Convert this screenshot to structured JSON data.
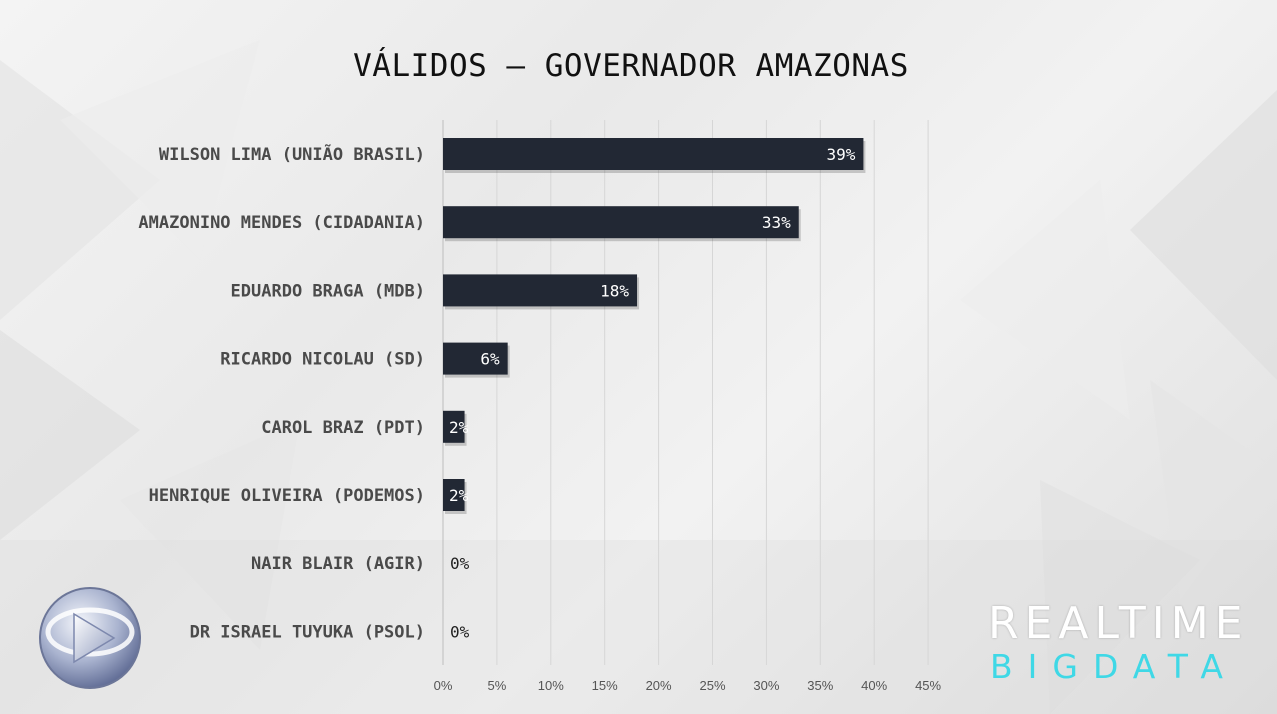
{
  "chart_data": {
    "type": "bar",
    "orientation": "horizontal",
    "title": "VÁLIDOS – GOVERNADOR AMAZONAS",
    "categories": [
      "WILSON LIMA (UNIÃO BRASIL)",
      "AMAZONINO MENDES (CIDADANIA)",
      "EDUARDO BRAGA (MDB)",
      "RICARDO NICOLAU (SD)",
      "CAROL BRAZ (PDT)",
      "HENRIQUE OLIVEIRA (PODEMOS)",
      "NAIR BLAIR (AGIR)",
      "DR ISRAEL TUYUKA (PSOL)"
    ],
    "values": [
      39,
      33,
      18,
      6,
      2,
      2,
      0,
      0
    ],
    "data_labels": [
      "39%",
      "33%",
      "18%",
      "6%",
      "2%",
      "2%",
      "0%",
      "0%"
    ],
    "xlim": [
      0,
      45
    ],
    "x_ticks": [
      "0%",
      "5%",
      "10%",
      "15%",
      "20%",
      "25%",
      "30%",
      "35%",
      "40%",
      "45%"
    ],
    "grid": "vertical",
    "bar_color": "#222834",
    "legend": "none"
  },
  "branding": {
    "line1": "REALTIME",
    "line2": "BIGDATA",
    "line1_color": "#ffffff",
    "line2_color": "#3fd8e6"
  },
  "logo": {
    "icon": "record-tv-logo-icon"
  }
}
